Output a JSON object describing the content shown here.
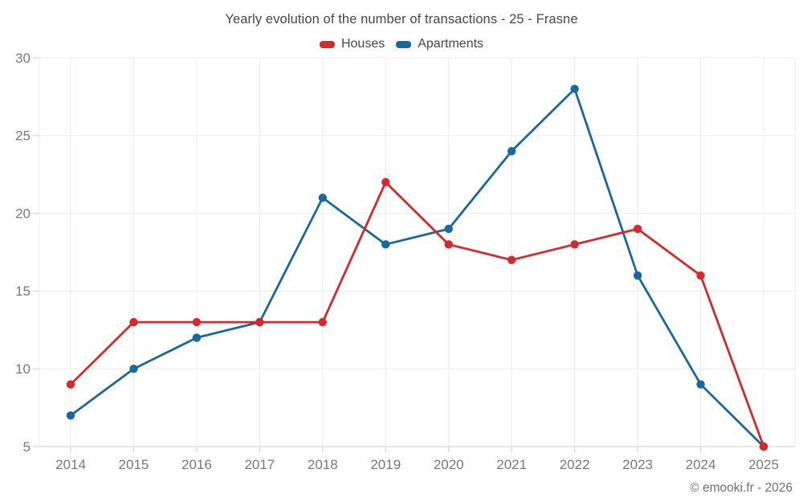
{
  "title": "Yearly evolution of the number of transactions - 25 - Frasne",
  "legend": {
    "items": [
      {
        "label": "Houses",
        "color": "#d4292d"
      },
      {
        "label": "Apartments",
        "color": "#17699f"
      }
    ]
  },
  "footer": {
    "credit": "© emooki.fr - 2026"
  },
  "chart_data": {
    "type": "line",
    "title": "Yearly evolution of the number of transactions - 25 - Frasne",
    "categories": [
      "2014",
      "2015",
      "2016",
      "2017",
      "2018",
      "2019",
      "2020",
      "2021",
      "2022",
      "2023",
      "2024",
      "2025"
    ],
    "series": [
      {
        "name": "Houses",
        "color": "#d4292d",
        "values": [
          9,
          13,
          13,
          13,
          13,
          22,
          18,
          17,
          18,
          19,
          16,
          5
        ]
      },
      {
        "name": "Apartments",
        "color": "#17699f",
        "values": [
          7,
          10,
          12,
          13,
          21,
          18,
          19,
          24,
          28,
          16,
          9,
          5
        ]
      }
    ],
    "xlabel": "",
    "ylabel": "",
    "ylim": [
      5,
      30
    ],
    "yticks": [
      5,
      10,
      15,
      20,
      25,
      30
    ],
    "grid": true,
    "legend_position": "top",
    "colors": {
      "gridline": "#ebebeb",
      "axis": "#cfcfcf",
      "tick_label": "#787878",
      "title_text": "#474747"
    }
  }
}
